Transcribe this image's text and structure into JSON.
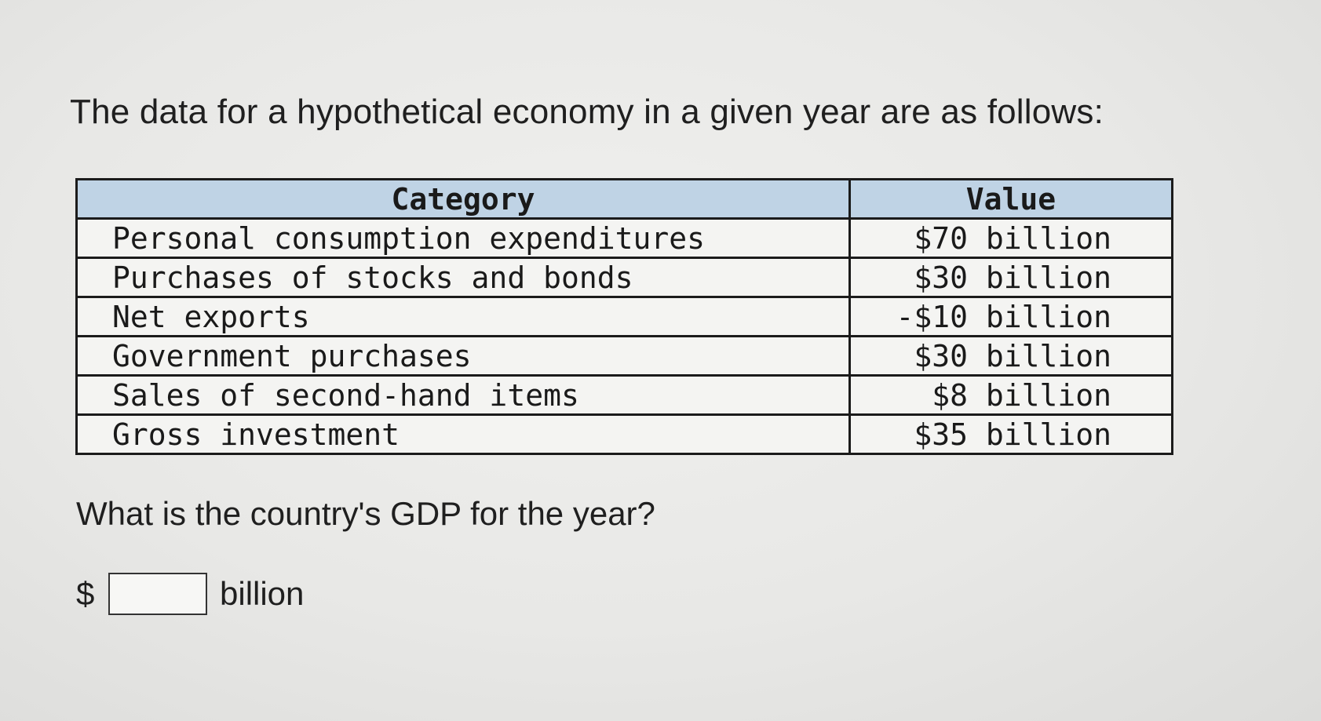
{
  "intro_text": "The data for a hypothetical economy in a given year are as follows:",
  "table": {
    "headers": {
      "category": "Category",
      "value": "Value"
    },
    "rows": [
      {
        "category": "Personal consumption expenditures",
        "value": "$70 billion"
      },
      {
        "category": "Purchases of stocks and bonds",
        "value": "$30 billion"
      },
      {
        "category": "Net exports",
        "value": "-$10 billion"
      },
      {
        "category": "Government purchases",
        "value": "$30 billion"
      },
      {
        "category": "Sales of second-hand items",
        "value": "$8 billion"
      },
      {
        "category": "Gross investment",
        "value": "$35 billion"
      }
    ]
  },
  "question": "What is the country's GDP for the year?",
  "answer": {
    "prefix": "$",
    "value": "",
    "unit": "billion"
  },
  "colors": {
    "header_background": "#bfd3e5",
    "page_background": "#e9e9e7"
  }
}
